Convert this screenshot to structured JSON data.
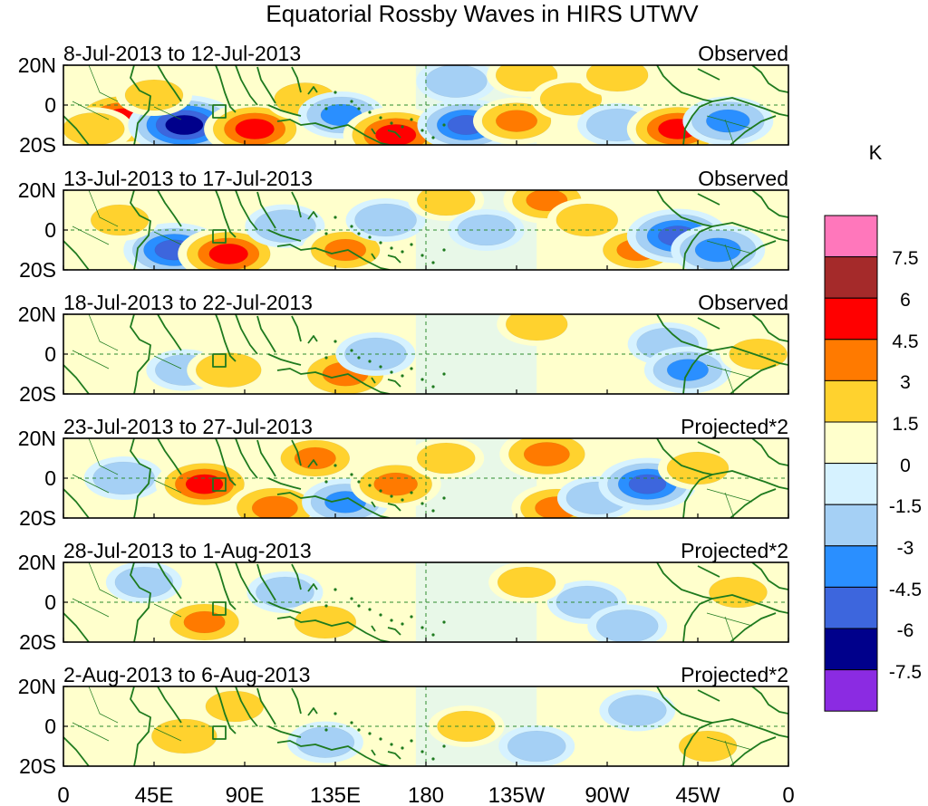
{
  "title": "Equatorial Rossby Waves in HIRS UTWV",
  "y_tick_labels": [
    "20N",
    "0",
    "20S"
  ],
  "x_tick_labels": [
    "0",
    "45E",
    "90E",
    "135E",
    "180",
    "135W",
    "90W",
    "45W",
    "0"
  ],
  "panels": [
    {
      "date_range": "8-Jul-2013 to 12-Jul-2013",
      "type": "Observed"
    },
    {
      "date_range": "13-Jul-2013 to 17-Jul-2013",
      "type": "Observed"
    },
    {
      "date_range": "18-Jul-2013 to 22-Jul-2013",
      "type": "Observed"
    },
    {
      "date_range": "23-Jul-2013 to 27-Jul-2013",
      "type": "Projected*2"
    },
    {
      "date_range": "28-Jul-2013 to 1-Aug-2013",
      "type": "Projected*2"
    },
    {
      "date_range": "2-Aug-2013 to 6-Aug-2013",
      "type": "Projected*2"
    }
  ],
  "colorbar": {
    "unit": "K",
    "labels": [
      "7.5",
      "6",
      "4.5",
      "3",
      "1.5",
      "0",
      "-1.5",
      "-3",
      "-4.5",
      "-6",
      "-7.5"
    ],
    "colors": [
      "#ff77bb",
      "#a52a2a",
      "#ff0000",
      "#ff7a00",
      "#ffd22e",
      "#ffffcc",
      "#d6f2ff",
      "#a5d0f5",
      "#2a8fff",
      "#3d66dd",
      "#00008b",
      "#8b2be2"
    ]
  },
  "colors": {
    "coast": "#1e7a1e",
    "grid": "#2e8b2e"
  },
  "chart_data": {
    "type": "heatmap",
    "title": "Equatorial Rossby Waves in HIRS UTWV",
    "variable": "HIRS UTWV anomaly",
    "unit": "K",
    "x_range_deg_east": [
      0,
      360
    ],
    "y_range_deg": [
      -20,
      20
    ],
    "contour_levels": [
      -7.5,
      -6,
      -4.5,
      -3,
      -1.5,
      0,
      1.5,
      3,
      4.5,
      6,
      7.5
    ],
    "panels": [
      {
        "label": "8-Jul-2013 to 12-Jul-2013",
        "kind": "Observed",
        "anomalies": [
          {
            "lon": 30,
            "lat": -7,
            "value": 5.5
          },
          {
            "lon": 15,
            "lat": -12,
            "value": 2
          },
          {
            "lon": 60,
            "lat": -10,
            "value": -6.5
          },
          {
            "lon": 45,
            "lat": 5,
            "value": 1.5
          },
          {
            "lon": 95,
            "lat": -12,
            "value": 5
          },
          {
            "lon": 120,
            "lat": 3,
            "value": 2
          },
          {
            "lon": 138,
            "lat": -5,
            "value": -3
          },
          {
            "lon": 165,
            "lat": -15,
            "value": 5.5
          },
          {
            "lon": 200,
            "lat": -10,
            "value": -4.5
          },
          {
            "lon": 225,
            "lat": -8,
            "value": 3
          },
          {
            "lon": 195,
            "lat": 12,
            "value": -2
          },
          {
            "lon": 230,
            "lat": 15,
            "value": 2
          },
          {
            "lon": 252,
            "lat": 3,
            "value": 2
          },
          {
            "lon": 275,
            "lat": -10,
            "value": -2
          },
          {
            "lon": 305,
            "lat": -12,
            "value": 5
          },
          {
            "lon": 330,
            "lat": -8,
            "value": -3.5
          },
          {
            "lon": 275,
            "lat": 15,
            "value": 2
          }
        ]
      },
      {
        "label": "13-Jul-2013 to 17-Jul-2013",
        "kind": "Observed",
        "anomalies": [
          {
            "lon": 55,
            "lat": -10,
            "value": -5
          },
          {
            "lon": 82,
            "lat": -12,
            "value": 5
          },
          {
            "lon": 28,
            "lat": 5,
            "value": 1.5
          },
          {
            "lon": 110,
            "lat": 2,
            "value": -2
          },
          {
            "lon": 140,
            "lat": -10,
            "value": 3
          },
          {
            "lon": 160,
            "lat": 5,
            "value": -2
          },
          {
            "lon": 190,
            "lat": 15,
            "value": 1.5
          },
          {
            "lon": 210,
            "lat": 0,
            "value": -1.5
          },
          {
            "lon": 240,
            "lat": 15,
            "value": 3
          },
          {
            "lon": 260,
            "lat": 5,
            "value": 2
          },
          {
            "lon": 285,
            "lat": -10,
            "value": 3
          },
          {
            "lon": 305,
            "lat": -3,
            "value": -5
          },
          {
            "lon": 325,
            "lat": -10,
            "value": -4
          }
        ]
      },
      {
        "label": "18-Jul-2013 to 22-Jul-2013",
        "kind": "Observed",
        "anomalies": [
          {
            "lon": 60,
            "lat": -8,
            "value": -1.5
          },
          {
            "lon": 82,
            "lat": -8,
            "value": 2.5
          },
          {
            "lon": 140,
            "lat": -10,
            "value": 4
          },
          {
            "lon": 155,
            "lat": 0,
            "value": -2
          },
          {
            "lon": 235,
            "lat": 15,
            "value": 2
          },
          {
            "lon": 300,
            "lat": 5,
            "value": -2
          },
          {
            "lon": 310,
            "lat": -8,
            "value": -3
          },
          {
            "lon": 345,
            "lat": 0,
            "value": 1.5
          }
        ]
      },
      {
        "label": "23-Jul-2013 to 27-Jul-2013",
        "kind": "Projected*2",
        "anomalies": [
          {
            "lon": 30,
            "lat": 0,
            "value": -2
          },
          {
            "lon": 70,
            "lat": -3,
            "value": 4.5
          },
          {
            "lon": 105,
            "lat": -15,
            "value": 4
          },
          {
            "lon": 125,
            "lat": 10,
            "value": 3
          },
          {
            "lon": 140,
            "lat": -12,
            "value": -3
          },
          {
            "lon": 165,
            "lat": -3,
            "value": 3.5
          },
          {
            "lon": 190,
            "lat": 10,
            "value": 1.5
          },
          {
            "lon": 240,
            "lat": 12,
            "value": 4
          },
          {
            "lon": 245,
            "lat": -15,
            "value": 3.5
          },
          {
            "lon": 265,
            "lat": -10,
            "value": -2
          },
          {
            "lon": 290,
            "lat": -3,
            "value": -4.5
          },
          {
            "lon": 315,
            "lat": 5,
            "value": 2
          }
        ]
      },
      {
        "label": "28-Jul-2013 to 1-Aug-2013",
        "kind": "Projected*2",
        "anomalies": [
          {
            "lon": 70,
            "lat": -10,
            "value": 3
          },
          {
            "lon": 40,
            "lat": 10,
            "value": -1.5
          },
          {
            "lon": 110,
            "lat": 5,
            "value": -1.5
          },
          {
            "lon": 130,
            "lat": -10,
            "value": 2
          },
          {
            "lon": 260,
            "lat": 0,
            "value": -2
          },
          {
            "lon": 280,
            "lat": -12,
            "value": -2
          },
          {
            "lon": 230,
            "lat": 10,
            "value": 1.5
          },
          {
            "lon": 335,
            "lat": 5,
            "value": 1.5
          }
        ]
      },
      {
        "label": "2-Aug-2013 to 6-Aug-2013",
        "kind": "Projected*2",
        "anomalies": [
          {
            "lon": 60,
            "lat": -5,
            "value": 2.5
          },
          {
            "lon": 85,
            "lat": 10,
            "value": 1.5
          },
          {
            "lon": 130,
            "lat": -8,
            "value": -1.5
          },
          {
            "lon": 200,
            "lat": 0,
            "value": 1.5
          },
          {
            "lon": 235,
            "lat": -10,
            "value": -1.5
          },
          {
            "lon": 285,
            "lat": 8,
            "value": -1.5
          },
          {
            "lon": 320,
            "lat": -10,
            "value": 1.5
          }
        ]
      }
    ]
  }
}
